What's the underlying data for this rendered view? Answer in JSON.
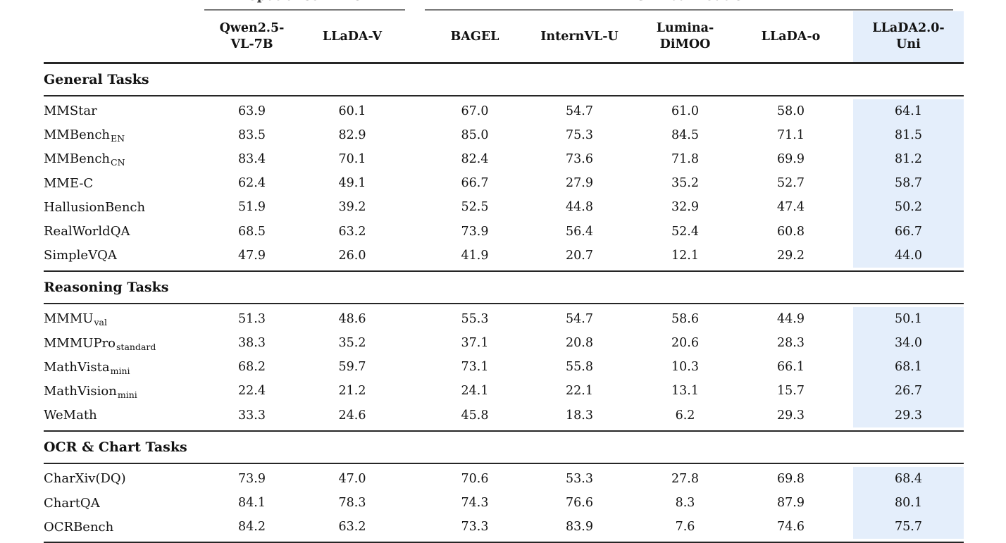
{
  "table": {
    "highlight_color": "#e4eefb",
    "rule_color": "#262626",
    "groups": [
      {
        "label": "Specialist VLMs",
        "columns": [
          0,
          1
        ]
      },
      {
        "label": "Unified Models",
        "columns": [
          2,
          6
        ]
      }
    ],
    "columns": [
      {
        "label": "Qwen2.5-VL-7B",
        "lines": [
          "Qwen2.5-",
          "VL-7B"
        ],
        "highlight": false
      },
      {
        "label": "LLaDA-V",
        "lines": [
          "LLaDA-V"
        ],
        "highlight": false
      },
      {
        "label": "BAGEL",
        "lines": [
          "BAGEL"
        ],
        "highlight": false
      },
      {
        "label": "InternVL-U",
        "lines": [
          "InternVL-U"
        ],
        "highlight": false
      },
      {
        "label": "Lumina-DiMOO",
        "lines": [
          "Lumina-",
          "DiMOO"
        ],
        "highlight": false
      },
      {
        "label": "LLaDA-o",
        "lines": [
          "LLaDA-o"
        ],
        "highlight": false
      },
      {
        "label": "LLaDA2.0-Uni",
        "lines": [
          "LLaDA2.0-",
          "Uni"
        ],
        "highlight": true
      }
    ],
    "sections": [
      {
        "title": "General Tasks",
        "rows": [
          {
            "name": "MMStar",
            "sub": "",
            "values": [
              "63.9",
              "60.1",
              "67.0",
              "54.7",
              "61.0",
              "58.0",
              "64.1"
            ]
          },
          {
            "name": "MMBench",
            "sub": "EN",
            "values": [
              "83.5",
              "82.9",
              "85.0",
              "75.3",
              "84.5",
              "71.1",
              "81.5"
            ]
          },
          {
            "name": "MMBench",
            "sub": "CN",
            "values": [
              "83.4",
              "70.1",
              "82.4",
              "73.6",
              "71.8",
              "69.9",
              "81.2"
            ]
          },
          {
            "name": "MME-C",
            "sub": "",
            "values": [
              "62.4",
              "49.1",
              "66.7",
              "27.9",
              "35.2",
              "52.7",
              "58.7"
            ]
          },
          {
            "name": "HallusionBench",
            "sub": "",
            "values": [
              "51.9",
              "39.2",
              "52.5",
              "44.8",
              "32.9",
              "47.4",
              "50.2"
            ]
          },
          {
            "name": "RealWorldQA",
            "sub": "",
            "values": [
              "68.5",
              "63.2",
              "73.9",
              "56.4",
              "52.4",
              "60.8",
              "66.7"
            ]
          },
          {
            "name": "SimpleVQA",
            "sub": "",
            "values": [
              "47.9",
              "26.0",
              "41.9",
              "20.7",
              "12.1",
              "29.2",
              "44.0"
            ]
          }
        ]
      },
      {
        "title": "Reasoning Tasks",
        "rows": [
          {
            "name": "MMMU",
            "sub": "val",
            "values": [
              "51.3",
              "48.6",
              "55.3",
              "54.7",
              "58.6",
              "44.9",
              "50.1"
            ]
          },
          {
            "name": "MMMUPro",
            "sub": "standard",
            "values": [
              "38.3",
              "35.2",
              "37.1",
              "20.8",
              "20.6",
              "28.3",
              "34.0"
            ]
          },
          {
            "name": "MathVista",
            "sub": "mini",
            "values": [
              "68.2",
              "59.7",
              "73.1",
              "55.8",
              "10.3",
              "66.1",
              "68.1"
            ]
          },
          {
            "name": "MathVision",
            "sub": "mini",
            "values": [
              "22.4",
              "21.2",
              "24.1",
              "22.1",
              "13.1",
              "15.7",
              "26.7"
            ]
          },
          {
            "name": "WeMath",
            "sub": "",
            "values": [
              "33.3",
              "24.6",
              "45.8",
              "18.3",
              "6.2",
              "29.3",
              "29.3"
            ]
          }
        ]
      },
      {
        "title": "OCR & Chart Tasks",
        "rows": [
          {
            "name": "CharXiv(DQ)",
            "sub": "",
            "values": [
              "73.9",
              "47.0",
              "70.6",
              "53.3",
              "27.8",
              "69.8",
              "68.4"
            ]
          },
          {
            "name": "ChartQA",
            "sub": "",
            "values": [
              "84.1",
              "78.3",
              "74.3",
              "76.6",
              "8.3",
              "87.9",
              "80.1"
            ]
          },
          {
            "name": "OCRBench",
            "sub": "",
            "values": [
              "84.2",
              "63.2",
              "73.3",
              "83.9",
              "7.6",
              "74.6",
              "75.7"
            ]
          }
        ]
      }
    ]
  }
}
